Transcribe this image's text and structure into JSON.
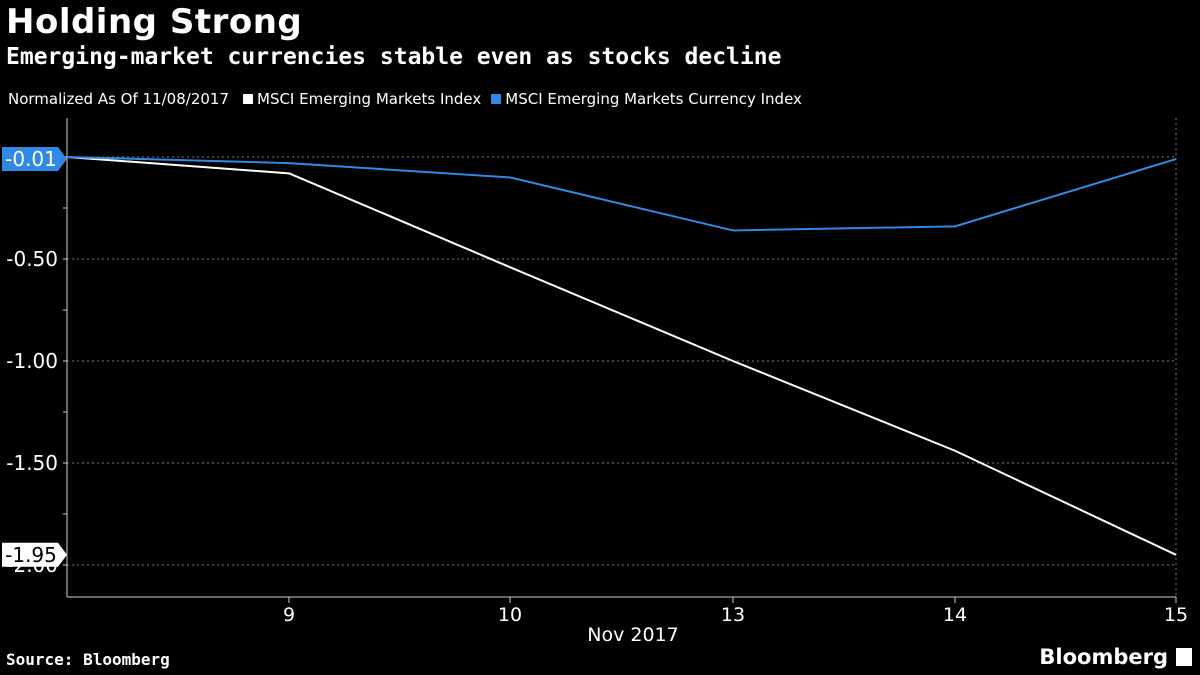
{
  "header": {
    "title": "Holding Strong",
    "subtitle": "Emerging-market currencies stable even as stocks decline"
  },
  "legend": {
    "note": "Normalized As Of 11/08/2017",
    "items": [
      {
        "label": "MSCI Emerging Markets Index",
        "color": "#ffffff"
      },
      {
        "label": "MSCI Emerging Markets Currency Index",
        "color": "#2f8ae5"
      }
    ]
  },
  "footer": {
    "source": "Source: Bloomberg",
    "brand": "Bloomberg"
  },
  "chart_data": {
    "type": "line",
    "title": "Holding Strong",
    "subtitle": "Emerging-market currencies stable even as stocks decline",
    "xlabel": "Nov 2017",
    "ylabel": "",
    "x": [
      "8",
      "9",
      "10",
      "13",
      "14",
      "15"
    ],
    "x_tick_labels": [
      "9",
      "10",
      "13",
      "14",
      "15"
    ],
    "y_tick_labels": [
      "-0.50",
      "-1.00",
      "-1.50",
      "-2.00"
    ],
    "y_ticks": [
      -0.5,
      -1.0,
      -1.5,
      -2.0
    ],
    "ylim": [
      -2.1,
      0.2
    ],
    "grid": true,
    "series": [
      {
        "name": "MSCI Emerging Markets Index",
        "color": "#ffffff",
        "values": [
          0,
          -0.08,
          -0.54,
          -1.0,
          -1.44,
          -1.95
        ],
        "last_label": "-1.95"
      },
      {
        "name": "MSCI Emerging Markets Currency Index",
        "color": "#2f8ae5",
        "values": [
          0,
          -0.03,
          -0.1,
          -0.36,
          -0.34,
          -0.01
        ],
        "last_label": "-0.01"
      }
    ]
  }
}
